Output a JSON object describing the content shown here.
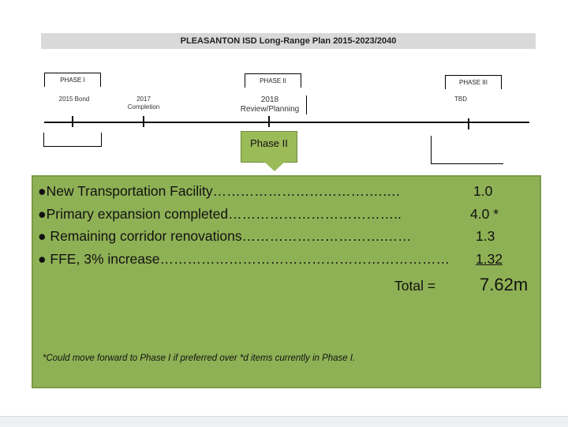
{
  "header": {
    "title": "PLEASANTON ISD    Long-Range  Plan 2015-2023/2040"
  },
  "phases": [
    {
      "label": "PHASE I"
    },
    {
      "label": "PHASE II"
    },
    {
      "label": "PHASE III"
    }
  ],
  "milestones": {
    "bond_2015": "2015 Bond",
    "completion_2017": "2017\nCompletion",
    "review_2018": "2018\nReview/Planning",
    "tbd": "TBD"
  },
  "callout": {
    "label": "Phase II"
  },
  "items": [
    {
      "text": "●New Transportation Facility……………………………….….",
      "value": "1.0"
    },
    {
      "text": "●Primary expansion completed………………………………..",
      "value": "4.0 *"
    },
    {
      "text": "● Remaining corridor renovations………………………….……",
      "value": "1.3"
    },
    {
      "text": "● FFE, 3% increase………………………………………………………",
      "value": "1.32"
    }
  ],
  "total": {
    "label": "Total =",
    "value": "7.62m"
  },
  "footnote": "*Could move forward to Phase I if preferred over *d items currently in Phase I."
}
